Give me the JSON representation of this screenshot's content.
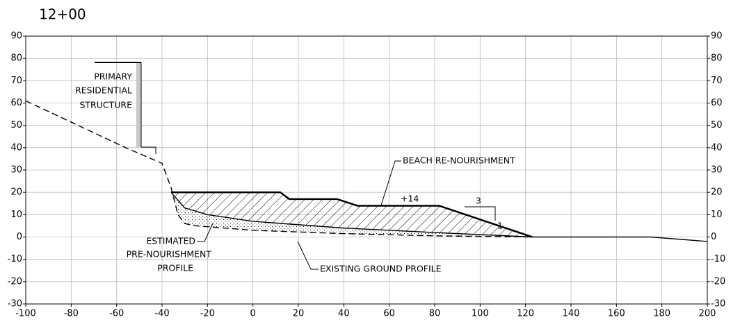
{
  "chart_data": {
    "type": "line",
    "title": "12+00",
    "xlim": [
      -100,
      200
    ],
    "xticks": [
      -100,
      -80,
      -60,
      -40,
      -20,
      0,
      20,
      40,
      60,
      80,
      100,
      120,
      140,
      160,
      180,
      200
    ],
    "ylim": [
      -30,
      90
    ],
    "yticks": [
      -30,
      -20,
      -10,
      0,
      10,
      20,
      30,
      40,
      50,
      60,
      70,
      80,
      90
    ],
    "y2lim": [
      -30,
      90
    ],
    "y2ticks": [
      -30,
      -20,
      -10,
      0,
      10,
      20,
      30,
      40,
      50,
      60,
      70,
      80,
      90
    ],
    "grid": true,
    "series": [
      {
        "name": "EXISTING GROUND PROFILE",
        "color": "#000000",
        "dash": true,
        "x": [
          -100,
          -56,
          -40,
          -36,
          -33,
          -30,
          -25,
          0,
          40,
          80,
          123
        ],
        "values": [
          61,
          40,
          33,
          22,
          10,
          6,
          5,
          3,
          1.5,
          0.5,
          0
        ]
      },
      {
        "name": "ESTIMATED PRE-NOURISHMENT PROFILE",
        "color": "#000000",
        "x": [
          -36,
          -30,
          -20,
          0,
          40,
          80,
          123
        ],
        "values": [
          20,
          13,
          10,
          7,
          4,
          2,
          0
        ]
      },
      {
        "name": "BEACH RE-NOURISHMENT",
        "color": "#000000",
        "thick": true,
        "x": [
          -36,
          12,
          16,
          37,
          46,
          82,
          123
        ],
        "values": [
          20,
          20,
          17,
          17,
          14,
          14,
          0
        ]
      },
      {
        "color": "#000000",
        "x": [
          123,
          175,
          200
        ],
        "values": [
          0,
          0,
          -2
        ]
      }
    ],
    "annotations": {
      "structure": [
        "PRIMARY",
        "RESIDENTIAL",
        "STRUCTURE"
      ],
      "beach": "BEACH RE-NOURISHMENT",
      "elevation": "+14",
      "slope_run": "3",
      "slope_rise": "1",
      "estimated": [
        "ESTIMATED",
        "PRE-NOURISHMENT",
        "PROFILE"
      ],
      "existing": "EXISTING GROUND PROFILE"
    }
  }
}
